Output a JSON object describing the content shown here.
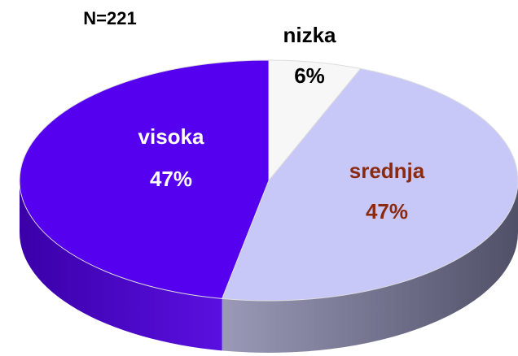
{
  "chart_data": {
    "type": "pie",
    "title": "N=221",
    "categories": [
      "nizka",
      "srednja",
      "visoka"
    ],
    "values": [
      6,
      47,
      47
    ],
    "value_labels": [
      "6%",
      "47%",
      "47%"
    ],
    "colors": [
      "#f7f7f7",
      "#c8c8f8",
      "#5500ee"
    ]
  }
}
